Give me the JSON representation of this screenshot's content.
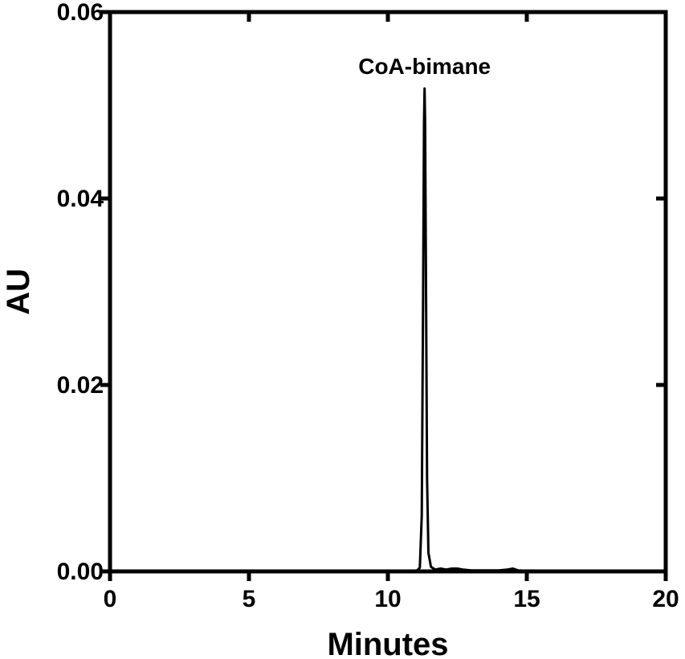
{
  "chart_data": {
    "type": "line",
    "title": "",
    "xlabel": "Minutes",
    "ylabel": "AU",
    "xlim": [
      0,
      20
    ],
    "ylim": [
      0,
      0.06
    ],
    "x_ticks": [
      "0",
      "5",
      "10",
      "15",
      "20"
    ],
    "y_ticks": [
      "0.00",
      "0.02",
      "0.04",
      "0.06"
    ],
    "grid": false,
    "legend": "none",
    "series": [
      {
        "color": "#000000",
        "points": [
          [
            0,
            0
          ],
          [
            10.9,
            0
          ],
          [
            11.05,
            0.0001
          ],
          [
            11.15,
            0.0004
          ],
          [
            11.22,
            0.006
          ],
          [
            11.27,
            0.03
          ],
          [
            11.3,
            0.048
          ],
          [
            11.32,
            0.0518
          ],
          [
            11.34,
            0.048
          ],
          [
            11.37,
            0.032
          ],
          [
            11.41,
            0.01
          ],
          [
            11.46,
            0.002
          ],
          [
            11.55,
            0.0005
          ],
          [
            11.7,
            0.0002
          ],
          [
            11.9,
            0.0003
          ],
          [
            12.1,
            0.0002
          ],
          [
            12.3,
            0.0003
          ],
          [
            12.5,
            0.0003
          ],
          [
            12.7,
            0.0002
          ],
          [
            13.0,
            0.0001
          ],
          [
            14.0,
            0.0001
          ],
          [
            14.3,
            0.0002
          ],
          [
            14.5,
            0.0003
          ],
          [
            14.7,
            0.0001
          ],
          [
            15.5,
            0
          ],
          [
            20,
            0
          ]
        ]
      }
    ],
    "annotations": [
      {
        "text": "CoA-bimane",
        "x": 11.32,
        "y": 0.0518
      }
    ]
  }
}
